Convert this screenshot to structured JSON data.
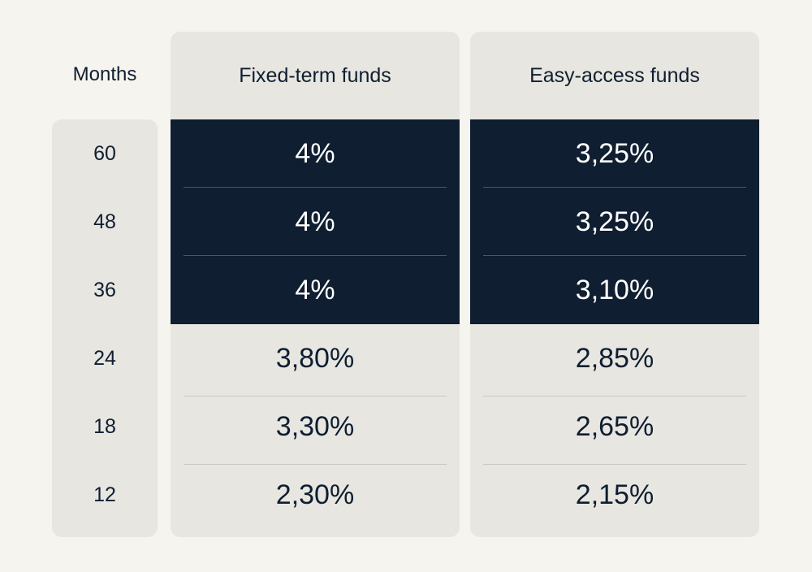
{
  "chart_data": {
    "type": "table",
    "columns": [
      "Months",
      "Fixed-term funds",
      "Easy-access funds"
    ],
    "rows": [
      {
        "months": "60",
        "fixed": "4%",
        "easy": "3,25%"
      },
      {
        "months": "48",
        "fixed": "4%",
        "easy": "3,25%"
      },
      {
        "months": "36",
        "fixed": "4%",
        "easy": "3,10%"
      },
      {
        "months": "24",
        "fixed": "3,80%",
        "easy": "2,85%"
      },
      {
        "months": "18",
        "fixed": "3,30%",
        "easy": "2,65%"
      },
      {
        "months": "12",
        "fixed": "2,30%",
        "easy": "2,15%"
      }
    ],
    "highlighted_rows": 3
  },
  "colors": {
    "background": "#f5f4ef",
    "panel": "#e7e6e0",
    "highlight": "#0f1e31",
    "text_dark": "#0f1e31",
    "text_light": "#ffffff"
  }
}
